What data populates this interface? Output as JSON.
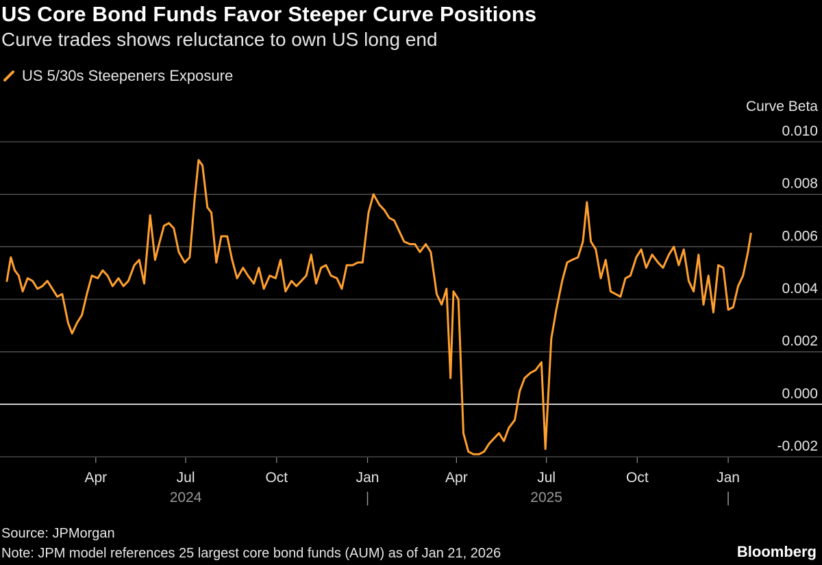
{
  "header": {
    "title": "US Core Bond Funds Favor Steeper Curve Positions",
    "subtitle": "Curve trades shows reluctance to own US long end"
  },
  "legend": {
    "label": "US 5/30s Steepeners Exposure"
  },
  "footer": {
    "source": "Source: JPMorgan",
    "note": "Note: JPM model references 25 largest core bond funds (AUM) as of Jan 21, 2026",
    "brand": "Bloomberg"
  },
  "colors": {
    "series": "#FFA02F",
    "grid": "#555555",
    "zero_line": "#ffffff",
    "text": "#e6e6e6"
  },
  "chart_data": {
    "type": "line",
    "ylabel": "Curve Beta",
    "ylim": [
      -0.002,
      0.01
    ],
    "y_ticks": [
      "0.010",
      "0.008",
      "0.006",
      "0.004",
      "0.002",
      "0.000",
      "-0.002"
    ],
    "x_tick_labels": [
      {
        "date": "2024-04-01",
        "label": "Apr"
      },
      {
        "date": "2024-07-01",
        "label": "Jul"
      },
      {
        "date": "2024-10-01",
        "label": "Oct"
      },
      {
        "date": "2025-01-01",
        "label": "Jan"
      },
      {
        "date": "2025-04-01",
        "label": "Apr"
      },
      {
        "date": "2025-07-01",
        "label": "Jul"
      },
      {
        "date": "2025-10-01",
        "label": "Oct"
      },
      {
        "date": "2026-01-01",
        "label": "Jan"
      }
    ],
    "year_labels": [
      {
        "label": "2024",
        "date": "2024-07-01"
      },
      {
        "label": "2025",
        "date": "2025-07-01"
      }
    ],
    "year_separators": [
      "2025-01-01",
      "2026-01-01"
    ],
    "x_range": [
      "2024-01-02",
      "2026-02-06"
    ],
    "series": [
      {
        "name": "US 5/30s Steepeners Exposure",
        "points": [
          [
            "2024-01-02",
            0.0047
          ],
          [
            "2024-01-06",
            0.0056
          ],
          [
            "2024-01-10",
            0.0051
          ],
          [
            "2024-01-14",
            0.0049
          ],
          [
            "2024-01-18",
            0.0043
          ],
          [
            "2024-01-23",
            0.0048
          ],
          [
            "2024-01-28",
            0.0047
          ],
          [
            "2024-02-02",
            0.0044
          ],
          [
            "2024-02-07",
            0.0045
          ],
          [
            "2024-02-12",
            0.0047
          ],
          [
            "2024-02-17",
            0.0044
          ],
          [
            "2024-02-22",
            0.0041
          ],
          [
            "2024-02-27",
            0.0042
          ],
          [
            "2024-03-04",
            0.0031
          ],
          [
            "2024-03-08",
            0.0027
          ],
          [
            "2024-03-13",
            0.0031
          ],
          [
            "2024-03-18",
            0.0034
          ],
          [
            "2024-03-23",
            0.0042
          ],
          [
            "2024-03-28",
            0.0049
          ],
          [
            "2024-04-03",
            0.0048
          ],
          [
            "2024-04-08",
            0.0051
          ],
          [
            "2024-04-13",
            0.0049
          ],
          [
            "2024-04-18",
            0.0045
          ],
          [
            "2024-04-24",
            0.0048
          ],
          [
            "2024-04-29",
            0.0045
          ],
          [
            "2024-05-04",
            0.0047
          ],
          [
            "2024-05-10",
            0.0053
          ],
          [
            "2024-05-15",
            0.0055
          ],
          [
            "2024-05-20",
            0.0046
          ],
          [
            "2024-05-26",
            0.0072
          ],
          [
            "2024-05-31",
            0.0055
          ],
          [
            "2024-06-04",
            0.0061
          ],
          [
            "2024-06-09",
            0.0068
          ],
          [
            "2024-06-14",
            0.0069
          ],
          [
            "2024-06-19",
            0.0067
          ],
          [
            "2024-06-24",
            0.0058
          ],
          [
            "2024-06-30",
            0.0054
          ],
          [
            "2024-07-05",
            0.0056
          ],
          [
            "2024-07-10",
            0.0078
          ],
          [
            "2024-07-14",
            0.0093
          ],
          [
            "2024-07-18",
            0.0091
          ],
          [
            "2024-07-23",
            0.0075
          ],
          [
            "2024-07-27",
            0.0073
          ],
          [
            "2024-08-01",
            0.0054
          ],
          [
            "2024-08-06",
            0.0064
          ],
          [
            "2024-08-12",
            0.0064
          ],
          [
            "2024-08-17",
            0.0055
          ],
          [
            "2024-08-22",
            0.0048
          ],
          [
            "2024-08-28",
            0.0052
          ],
          [
            "2024-09-02",
            0.0049
          ],
          [
            "2024-09-08",
            0.0046
          ],
          [
            "2024-09-13",
            0.0052
          ],
          [
            "2024-09-18",
            0.0044
          ],
          [
            "2024-09-24",
            0.0049
          ],
          [
            "2024-09-30",
            0.0048
          ],
          [
            "2024-10-05",
            0.0055
          ],
          [
            "2024-10-10",
            0.0043
          ],
          [
            "2024-10-16",
            0.0047
          ],
          [
            "2024-10-21",
            0.0045
          ],
          [
            "2024-10-26",
            0.0047
          ],
          [
            "2024-10-31",
            0.0049
          ],
          [
            "2024-11-05",
            0.0057
          ],
          [
            "2024-11-10",
            0.0046
          ],
          [
            "2024-11-15",
            0.0052
          ],
          [
            "2024-11-20",
            0.0053
          ],
          [
            "2024-11-25",
            0.0049
          ],
          [
            "2024-12-01",
            0.0048
          ],
          [
            "2024-12-06",
            0.0044
          ],
          [
            "2024-12-11",
            0.0053
          ],
          [
            "2024-12-17",
            0.0053
          ],
          [
            "2024-12-22",
            0.0054
          ],
          [
            "2024-12-27",
            0.0054
          ],
          [
            "2025-01-02",
            0.0073
          ],
          [
            "2025-01-07",
            0.008
          ],
          [
            "2025-01-13",
            0.0076
          ],
          [
            "2025-01-18",
            0.0074
          ],
          [
            "2025-01-23",
            0.0071
          ],
          [
            "2025-01-28",
            0.007
          ],
          [
            "2025-02-02",
            0.0066
          ],
          [
            "2025-02-07",
            0.0062
          ],
          [
            "2025-02-13",
            0.0061
          ],
          [
            "2025-02-18",
            0.0061
          ],
          [
            "2025-02-23",
            0.0058
          ],
          [
            "2025-03-01",
            0.0061
          ],
          [
            "2025-03-06",
            0.0058
          ],
          [
            "2025-03-12",
            0.0042
          ],
          [
            "2025-03-17",
            0.0038
          ],
          [
            "2025-03-22",
            0.0044
          ],
          [
            "2025-03-26",
            0.001
          ],
          [
            "2025-03-29",
            0.0043
          ],
          [
            "2025-04-03",
            0.004
          ],
          [
            "2025-04-08",
            -0.0011
          ],
          [
            "2025-04-13",
            -0.0018
          ],
          [
            "2025-04-18",
            -0.0019
          ],
          [
            "2025-04-24",
            -0.0019
          ],
          [
            "2025-04-29",
            -0.0018
          ],
          [
            "2025-05-04",
            -0.0015
          ],
          [
            "2025-05-09",
            -0.0013
          ],
          [
            "2025-05-14",
            -0.0011
          ],
          [
            "2025-05-19",
            -0.0014
          ],
          [
            "2025-05-24",
            -0.0009
          ],
          [
            "2025-05-30",
            -0.0006
          ],
          [
            "2025-06-04",
            0.0005
          ],
          [
            "2025-06-09",
            0.001
          ],
          [
            "2025-06-15",
            0.0012
          ],
          [
            "2025-06-20",
            0.0013
          ],
          [
            "2025-06-26",
            0.0016
          ],
          [
            "2025-06-30",
            -0.0017
          ],
          [
            "2025-07-06",
            0.0025
          ],
          [
            "2025-07-11",
            0.0036
          ],
          [
            "2025-07-17",
            0.0047
          ],
          [
            "2025-07-22",
            0.0054
          ],
          [
            "2025-07-27",
            0.0055
          ],
          [
            "2025-08-02",
            0.0056
          ],
          [
            "2025-08-07",
            0.0062
          ],
          [
            "2025-08-11",
            0.0077
          ],
          [
            "2025-08-15",
            0.0062
          ],
          [
            "2025-08-20",
            0.0059
          ],
          [
            "2025-08-25",
            0.0048
          ],
          [
            "2025-08-30",
            0.0055
          ],
          [
            "2025-09-04",
            0.0043
          ],
          [
            "2025-09-09",
            0.0042
          ],
          [
            "2025-09-14",
            0.0041
          ],
          [
            "2025-09-19",
            0.0048
          ],
          [
            "2025-09-24",
            0.0049
          ],
          [
            "2025-09-30",
            0.0056
          ],
          [
            "2025-10-05",
            0.0059
          ],
          [
            "2025-10-10",
            0.0052
          ],
          [
            "2025-10-16",
            0.0057
          ],
          [
            "2025-10-22",
            0.0054
          ],
          [
            "2025-10-27",
            0.0052
          ],
          [
            "2025-11-02",
            0.0057
          ],
          [
            "2025-11-07",
            0.006
          ],
          [
            "2025-11-12",
            0.0053
          ],
          [
            "2025-11-17",
            0.0059
          ],
          [
            "2025-11-22",
            0.0047
          ],
          [
            "2025-11-27",
            0.0043
          ],
          [
            "2025-12-02",
            0.0057
          ],
          [
            "2025-12-07",
            0.0038
          ],
          [
            "2025-12-12",
            0.0049
          ],
          [
            "2025-12-17",
            0.0035
          ],
          [
            "2025-12-22",
            0.0053
          ],
          [
            "2025-12-27",
            0.0052
          ],
          [
            "2026-01-01",
            0.0036
          ],
          [
            "2026-01-06",
            0.0037
          ],
          [
            "2026-01-11",
            0.0045
          ],
          [
            "2026-01-16",
            0.0049
          ],
          [
            "2026-01-21",
            0.0058
          ],
          [
            "2026-01-24",
            0.0065
          ]
        ]
      }
    ]
  }
}
